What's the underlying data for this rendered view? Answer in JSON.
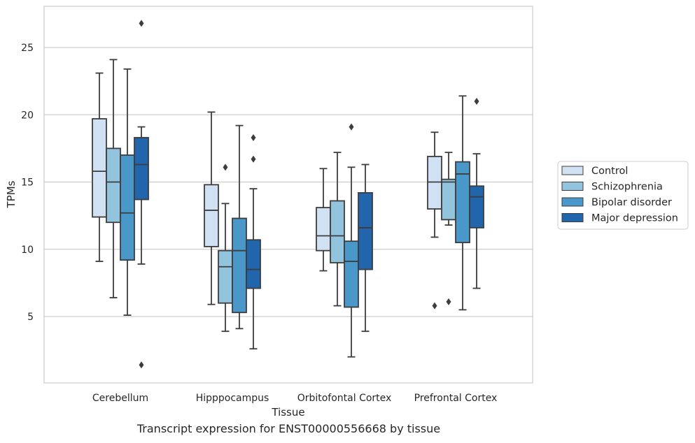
{
  "chart_data": {
    "type": "box",
    "xlabel": "Tissue",
    "ylabel": "TPMs",
    "caption": "Transcript expression for ENST00000556668 by tissue",
    "ylim": [
      0,
      28
    ],
    "yticks": [
      5,
      10,
      15,
      20,
      25
    ],
    "grid": "horizontal",
    "legend_position": "right",
    "categories": [
      "Cerebellum",
      "Hipppocampus",
      "Orbitofontal Cortex",
      "Prefrontal Cortex"
    ],
    "series": [
      {
        "name": "Control",
        "color": "#cfe1f2",
        "boxes": [
          {
            "whislo": 9.1,
            "q1": 12.4,
            "med": 15.8,
            "q3": 19.7,
            "whishi": 23.1,
            "fliers": []
          },
          {
            "whislo": 5.9,
            "q1": 10.2,
            "med": 12.9,
            "q3": 14.8,
            "whishi": 20.2,
            "fliers": []
          },
          {
            "whislo": 8.4,
            "q1": 9.9,
            "med": 11.0,
            "q3": 13.1,
            "whishi": 16.0,
            "fliers": []
          },
          {
            "whislo": 10.9,
            "q1": 13.0,
            "med": 15.0,
            "q3": 16.9,
            "whishi": 18.7,
            "fliers": [
              5.8
            ]
          }
        ]
      },
      {
        "name": "Schizophrenia",
        "color": "#93c4de",
        "boxes": [
          {
            "whislo": 6.4,
            "q1": 12.0,
            "med": 15.0,
            "q3": 17.5,
            "whishi": 24.1,
            "fliers": []
          },
          {
            "whislo": 3.9,
            "q1": 6.0,
            "med": 8.7,
            "q3": 9.9,
            "whishi": 13.4,
            "fliers": [
              16.1
            ]
          },
          {
            "whislo": 5.8,
            "q1": 9.0,
            "med": 11.0,
            "q3": 13.6,
            "whishi": 17.2,
            "fliers": []
          },
          {
            "whislo": 11.8,
            "q1": 12.2,
            "med": 15.0,
            "q3": 15.2,
            "whishi": 17.2,
            "fliers": [
              6.1
            ]
          }
        ]
      },
      {
        "name": "Bipolar disorder",
        "color": "#4a98c9",
        "boxes": [
          {
            "whislo": 5.1,
            "q1": 9.2,
            "med": 12.7,
            "q3": 17.0,
            "whishi": 23.4,
            "fliers": []
          },
          {
            "whislo": 4.1,
            "q1": 5.3,
            "med": 9.9,
            "q3": 12.3,
            "whishi": 19.2,
            "fliers": []
          },
          {
            "whislo": 2.0,
            "q1": 5.7,
            "med": 9.1,
            "q3": 10.6,
            "whishi": 16.1,
            "fliers": [
              19.1
            ]
          },
          {
            "whislo": 5.5,
            "q1": 10.5,
            "med": 15.6,
            "q3": 16.5,
            "whishi": 21.4,
            "fliers": []
          }
        ]
      },
      {
        "name": "Major depression",
        "color": "#2166ac",
        "boxes": [
          {
            "whislo": 8.9,
            "q1": 13.7,
            "med": 16.3,
            "q3": 18.3,
            "whishi": 19.1,
            "fliers": [
              26.8,
              1.4
            ]
          },
          {
            "whislo": 2.6,
            "q1": 7.1,
            "med": 8.5,
            "q3": 10.7,
            "whishi": 14.5,
            "fliers": [
              18.3,
              16.7
            ]
          },
          {
            "whislo": 3.9,
            "q1": 8.5,
            "med": 11.6,
            "q3": 14.2,
            "whishi": 16.3,
            "fliers": []
          },
          {
            "whislo": 7.1,
            "q1": 11.6,
            "med": 13.9,
            "q3": 14.7,
            "whishi": 17.1,
            "fliers": [
              21.0
            ]
          }
        ]
      }
    ]
  }
}
